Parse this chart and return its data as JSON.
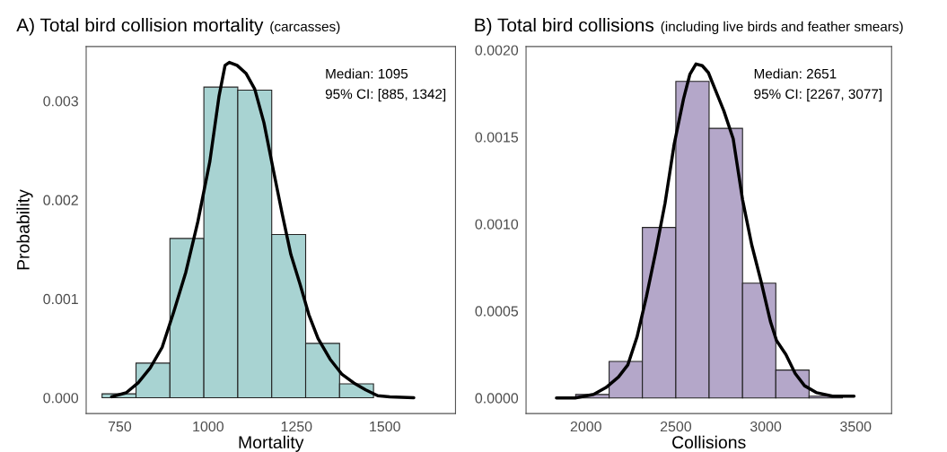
{
  "chart_data": [
    {
      "type": "histogram",
      "title": "A) Total bird collision mortality",
      "subtitle": "(carcasses)",
      "xlabel": "Mortality",
      "ylabel": "Probability",
      "bins": [
        700,
        796,
        892,
        988,
        1084,
        1180,
        1276,
        1372,
        1468
      ],
      "values": [
        4e-05,
        0.00035,
        0.00161,
        0.00314,
        0.00311,
        0.00165,
        0.00055,
        0.00014
      ],
      "color": "#a8d3d2",
      "series": [
        {
          "type": "line",
          "color": "#000000",
          "x": [
            727,
            768,
            802,
            836,
            870,
            903,
            937,
            971,
            1005,
            1031,
            1048,
            1060,
            1082,
            1107,
            1132,
            1158,
            1183,
            1209,
            1234,
            1260,
            1285,
            1311,
            1345,
            1378,
            1412,
            1446,
            1480,
            1514,
            1582
          ],
          "values": [
            1e-05,
            5e-05,
            0.00015,
            0.0003,
            0.00051,
            0.00087,
            0.00127,
            0.00178,
            0.00239,
            0.00305,
            0.00336,
            0.00339,
            0.00336,
            0.00328,
            0.00312,
            0.00278,
            0.00233,
            0.00187,
            0.00145,
            0.00115,
            0.00084,
            0.0006,
            0.00039,
            0.00024,
            0.00015,
            8e-05,
            2e-05,
            1e-05,
            0
          ]
        }
      ],
      "xlim": [
        655,
        1700
      ],
      "ylim": [
        -0.00016,
        0.00355
      ],
      "xticks": [
        750,
        1000,
        1250,
        1500
      ],
      "yticks": [
        {
          "value": 0,
          "label": "0.000"
        },
        {
          "value": 0.001,
          "label": "0.001"
        },
        {
          "value": 0.002,
          "label": "0.002"
        },
        {
          "value": 0.003,
          "label": "0.003"
        }
      ],
      "annotations": [
        "Median: 1095",
        "95% CI: [885, 1342]"
      ],
      "grid": false
    },
    {
      "type": "histogram",
      "title": "B) Total bird collisions",
      "subtitle": "(including live birds and feather smears)",
      "xlabel": "Collisions",
      "bins": [
        1943,
        2129,
        2314,
        2500,
        2685,
        2871,
        3056,
        3241,
        3426
      ],
      "values": [
        2e-05,
        0.00021,
        0.00098,
        0.00182,
        0.00155,
        0.00066,
        0.00016,
        1e-05
      ],
      "color": "#b4a7c9",
      "series": [
        {
          "type": "line",
          "color": "#000000",
          "x": [
            1836,
            1940,
            2043,
            2112,
            2181,
            2233,
            2284,
            2336,
            2388,
            2440,
            2491,
            2543,
            2578,
            2612,
            2647,
            2681,
            2716,
            2767,
            2819,
            2871,
            2922,
            2974,
            3026,
            3060,
            3112,
            3164,
            3216,
            3284,
            3371,
            3491
          ],
          "values": [
            0,
            0,
            2e-05,
            6e-05,
            0.00012,
            0.00019,
            0.00035,
            0.00058,
            0.00084,
            0.00112,
            0.00146,
            0.00172,
            0.00186,
            0.00192,
            0.00191,
            0.00187,
            0.00178,
            0.00165,
            0.00149,
            0.00114,
            0.00088,
            0.00067,
            0.00044,
            0.00033,
            0.00025,
            0.00014,
            7e-05,
            3e-05,
            1e-05,
            1e-05
          ]
        }
      ],
      "xlim": [
        1667,
        3700
      ],
      "ylim": [
        -9e-05,
        0.00202
      ],
      "xticks": [
        2000,
        2500,
        3000,
        3500
      ],
      "yticks": [
        {
          "value": 0,
          "label": "0.0000"
        },
        {
          "value": 0.0005,
          "label": "0.0005"
        },
        {
          "value": 0.001,
          "label": "0.0010"
        },
        {
          "value": 0.0015,
          "label": "0.0015"
        },
        {
          "value": 0.002,
          "label": "0.0020"
        }
      ],
      "annotations": [
        "Median: 2651",
        "95% CI: [2267, 3077]"
      ],
      "grid": false
    }
  ]
}
